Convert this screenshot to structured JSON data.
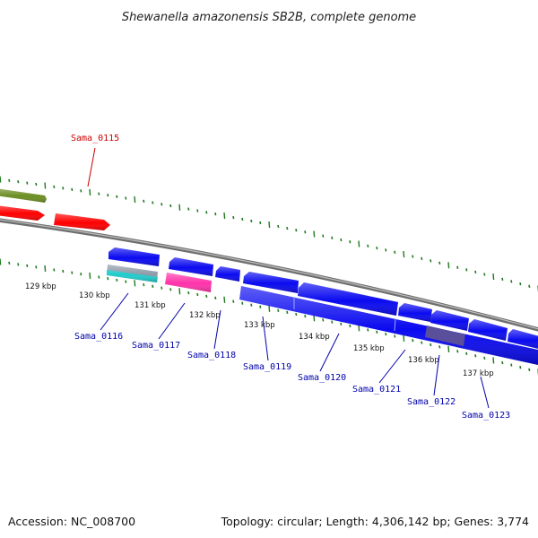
{
  "title": "Shewanella amazonensis SB2B, complete genome",
  "footer": {
    "accession": "Accession: NC_008700",
    "topology": "Topology: circular; Length: 4,306,142 bp; Genes: 3,774"
  },
  "colors": {
    "backbone": "#8c8c8c",
    "tick": "#1f7a1f",
    "label_forward": "#cc0000",
    "label_reverse": "#0000aa",
    "gene_blue": "#0a0af0",
    "gene_red": "#ff0000",
    "gene_olive": "#6b8e23",
    "gene_magenta": "#ff33aa",
    "gene_cyan": "#22cccc",
    "gene_slate": "#5a4f9a"
  },
  "ticks": [
    {
      "label": "129 kbp"
    },
    {
      "label": "130 kbp"
    },
    {
      "label": "131 kbp"
    },
    {
      "label": "132 kbp"
    },
    {
      "label": "133 kbp"
    },
    {
      "label": "134 kbp"
    },
    {
      "label": "135 kbp"
    },
    {
      "label": "136 kbp"
    },
    {
      "label": "137 kbp"
    }
  ],
  "gene_labels": [
    {
      "name": "Sama_0115",
      "strand": "forward"
    },
    {
      "name": "Sama_0116",
      "strand": "reverse"
    },
    {
      "name": "Sama_0117",
      "strand": "reverse"
    },
    {
      "name": "Sama_0118",
      "strand": "reverse"
    },
    {
      "name": "Sama_0119",
      "strand": "reverse"
    },
    {
      "name": "Sama_0120",
      "strand": "reverse"
    },
    {
      "name": "Sama_0121",
      "strand": "reverse"
    },
    {
      "name": "Sama_0122",
      "strand": "reverse"
    },
    {
      "name": "Sama_0123",
      "strand": "reverse"
    }
  ]
}
